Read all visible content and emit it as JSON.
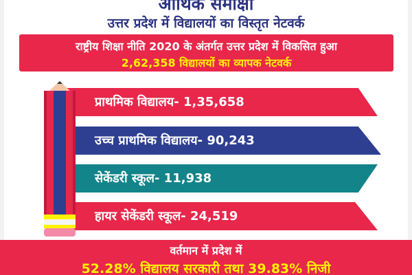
{
  "header": {
    "title": "आर्थिक समीक्षा",
    "subtitle": "उत्तर प्रदेश में विद्यालयों का विस्तृत नेटवर्क"
  },
  "banner": {
    "line1": "राष्ट्रीय शिक्षा नीति 2020 के अंतर्गत उत्तर प्रदेश में विकसित हुआ",
    "line2": "2,62,358 विद्यालयों का व्यापक नेटवर्क"
  },
  "items": [
    {
      "label": "प्राथमिक विद्यालय- 1,35,658"
    },
    {
      "label": "उच्च प्राथमिक विद्यालय- 90,243"
    },
    {
      "label": "सेकेंडरी स्कूल- 11,938"
    },
    {
      "label": "हायर सेकेंडरी स्कूल- 24,519"
    }
  ],
  "footer": {
    "line1": "वर्तमान में प्रदेश में",
    "line2": "52.28% विद्यालय सरकारी तथा 39.83% निजी"
  },
  "colors": {
    "primary_red": "#e8274b",
    "navy": "#2e3f91",
    "teal": "#12848a",
    "title_blue": "#2b3280",
    "highlight_yellow": "#fff200"
  }
}
